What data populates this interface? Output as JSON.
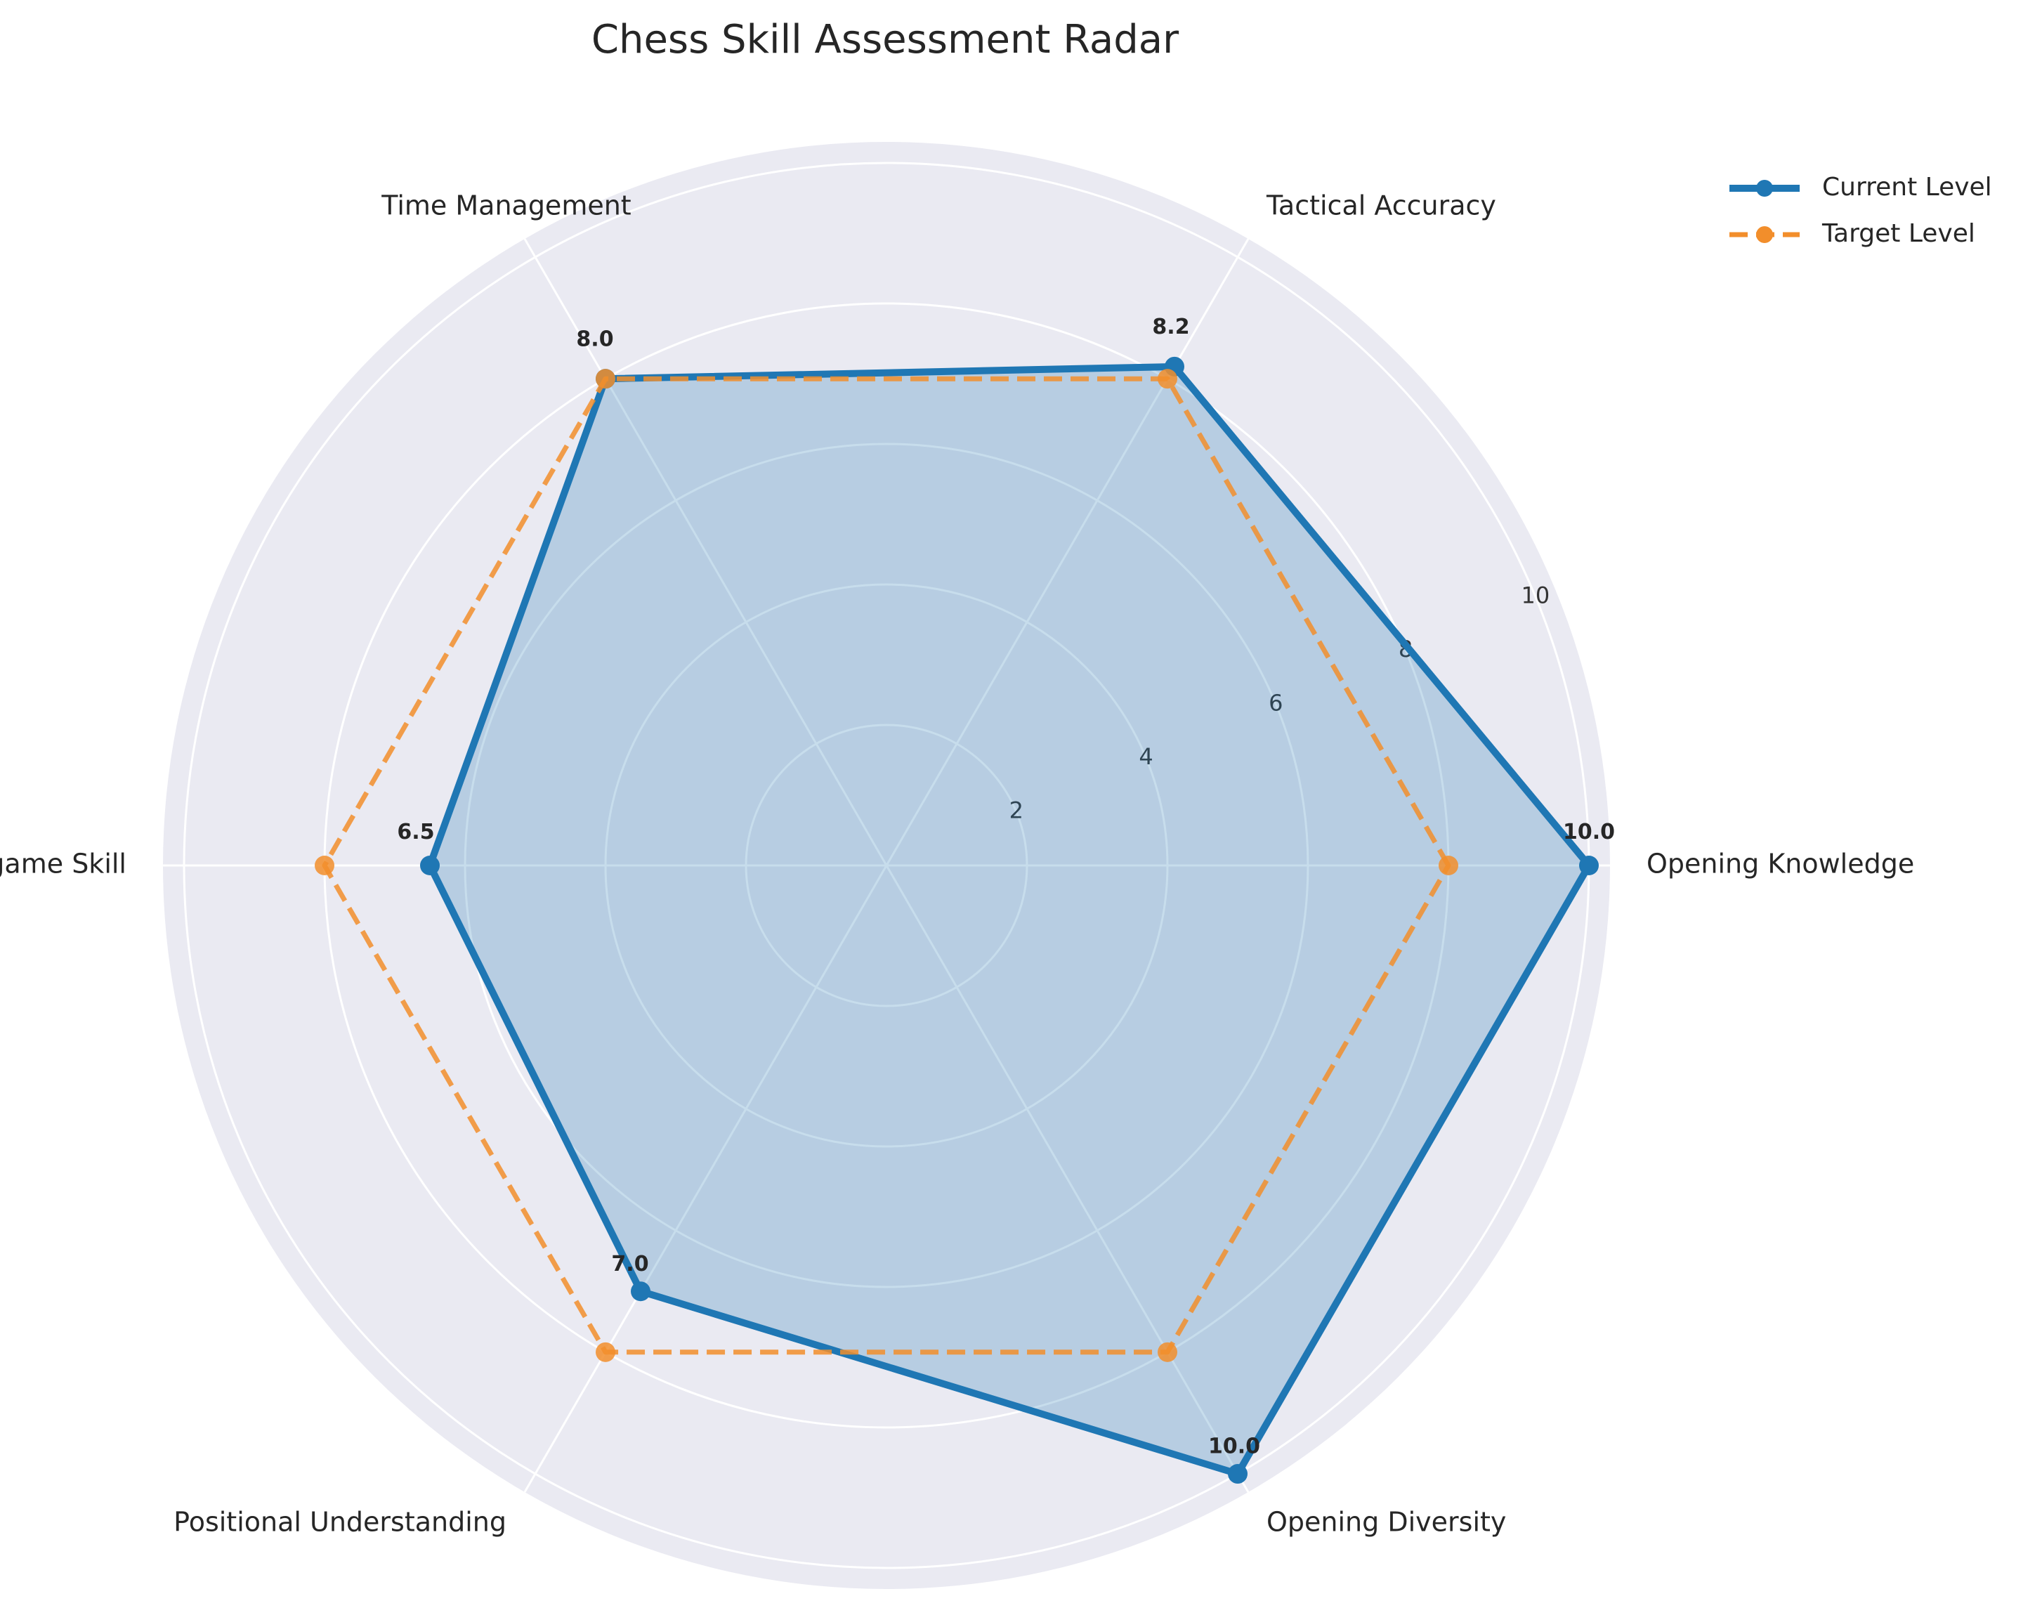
{
  "chart_data": {
    "type": "radar",
    "title": "Chess Skill Assessment Radar",
    "categories": [
      "Opening Knowledge",
      "Tactical Accuracy",
      "Time Management",
      "Endgame Skill",
      "Positional Understanding",
      "Opening Diversity"
    ],
    "series": [
      {
        "name": "Current Level",
        "values": [
          10.0,
          8.2,
          8.0,
          6.5,
          7.0,
          10.0
        ],
        "color": "#1f77b4",
        "line_style": "solid",
        "filled": true
      },
      {
        "name": "Target Level",
        "values": [
          8.0,
          8.0,
          8.0,
          8.0,
          8.0,
          8.0
        ],
        "color": "#f28e2b",
        "line_style": "dashed",
        "filled": false
      }
    ],
    "value_labels": [
      "10.0",
      "8.2",
      "8.0",
      "6.5",
      "7.0",
      "10.0"
    ],
    "radial_ticks": [
      2,
      4,
      6,
      8,
      10
    ],
    "rlim": [
      0,
      10
    ],
    "grid": true,
    "legend_position": "top-right"
  }
}
